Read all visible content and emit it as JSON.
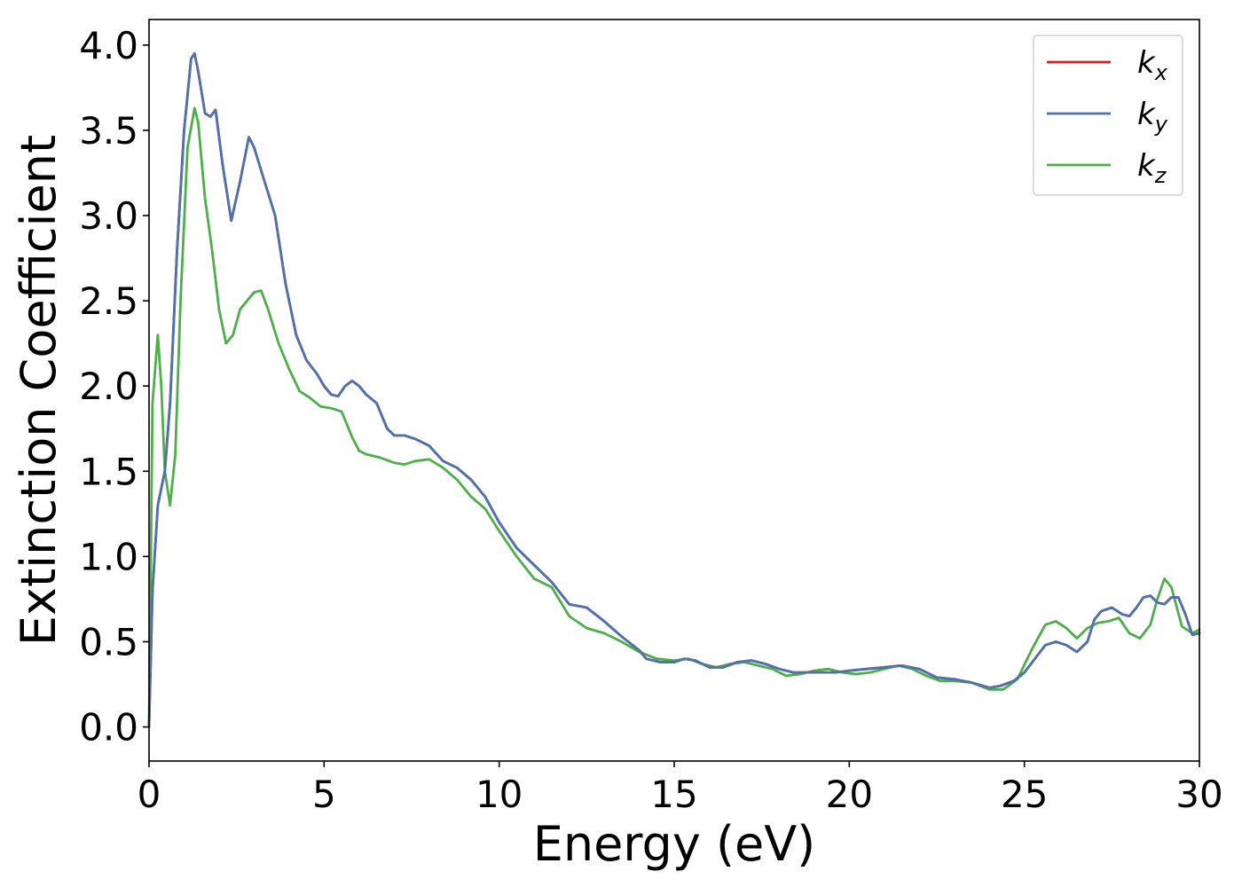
{
  "chart_data": {
    "type": "line",
    "title": "",
    "xlabel": "Energy (eV)",
    "ylabel": "Extinction Coefficient",
    "xlim": [
      0,
      30
    ],
    "ylim": [
      -0.2,
      4.15
    ],
    "xticks": [
      0,
      5,
      10,
      15,
      20,
      25,
      30
    ],
    "xtick_labels": [
      "0",
      "5",
      "10",
      "15",
      "20",
      "25",
      "30"
    ],
    "yticks": [
      0.0,
      0.5,
      1.0,
      1.5,
      2.0,
      2.5,
      3.0,
      3.5,
      4.0
    ],
    "ytick_labels": [
      "0.0",
      "0.5",
      "1.0",
      "1.5",
      "2.0",
      "2.5",
      "3.0",
      "3.5",
      "4.0"
    ],
    "grid": false,
    "legend_position": "top-right",
    "series": [
      {
        "name": "k_x",
        "label_base": "k",
        "label_sub": "x",
        "color": "#e41a1c",
        "x": [
          0,
          0.1,
          0.25,
          0.45,
          0.6,
          0.8,
          1.0,
          1.2,
          1.3,
          1.4,
          1.6,
          1.75,
          1.9,
          2.1,
          2.35,
          2.6,
          2.85,
          3.0,
          3.3,
          3.6,
          3.9,
          4.2,
          4.5,
          4.8,
          5.0,
          5.2,
          5.4,
          5.6,
          5.8,
          6.0,
          6.2,
          6.5,
          6.8,
          7.0,
          7.3,
          7.6,
          8.0,
          8.4,
          8.8,
          9.2,
          9.6,
          10.0,
          10.5,
          11.0,
          11.5,
          12.0,
          12.5,
          13.0,
          13.5,
          14.0,
          14.2,
          14.6,
          15.0,
          15.3,
          15.6,
          16.0,
          16.4,
          16.8,
          17.2,
          17.6,
          18.0,
          18.4,
          18.8,
          19.2,
          19.6,
          20.0,
          20.5,
          21.0,
          21.5,
          22.0,
          22.5,
          23.0,
          23.5,
          24.0,
          24.3,
          24.7,
          25.0,
          25.3,
          25.6,
          25.9,
          26.2,
          26.5,
          26.8,
          27.0,
          27.2,
          27.5,
          27.8,
          28.0,
          28.2,
          28.4,
          28.6,
          28.8,
          29.0,
          29.2,
          29.4,
          29.6,
          29.8,
          30.0
        ],
        "y": [
          0.0,
          0.8,
          1.3,
          1.5,
          1.9,
          2.8,
          3.5,
          3.92,
          3.95,
          3.85,
          3.6,
          3.58,
          3.62,
          3.3,
          2.97,
          3.2,
          3.46,
          3.4,
          3.2,
          3.0,
          2.6,
          2.3,
          2.15,
          2.07,
          2.0,
          1.95,
          1.94,
          2.0,
          2.03,
          2.0,
          1.95,
          1.9,
          1.75,
          1.71,
          1.71,
          1.69,
          1.65,
          1.56,
          1.52,
          1.45,
          1.35,
          1.2,
          1.05,
          0.95,
          0.85,
          0.72,
          0.7,
          0.62,
          0.53,
          0.45,
          0.4,
          0.38,
          0.38,
          0.4,
          0.39,
          0.35,
          0.35,
          0.38,
          0.39,
          0.37,
          0.34,
          0.32,
          0.32,
          0.32,
          0.32,
          0.33,
          0.34,
          0.35,
          0.36,
          0.34,
          0.29,
          0.28,
          0.26,
          0.23,
          0.24,
          0.27,
          0.32,
          0.4,
          0.48,
          0.5,
          0.48,
          0.44,
          0.5,
          0.63,
          0.68,
          0.7,
          0.66,
          0.65,
          0.7,
          0.76,
          0.77,
          0.73,
          0.72,
          0.76,
          0.76,
          0.66,
          0.54,
          0.55
        ]
      },
      {
        "name": "k_y",
        "label_base": "k",
        "label_sub": "y",
        "color": "#4a73b0",
        "x": [
          0,
          0.1,
          0.25,
          0.45,
          0.6,
          0.8,
          1.0,
          1.2,
          1.3,
          1.4,
          1.6,
          1.75,
          1.9,
          2.1,
          2.35,
          2.6,
          2.85,
          3.0,
          3.3,
          3.6,
          3.9,
          4.2,
          4.5,
          4.8,
          5.0,
          5.2,
          5.4,
          5.6,
          5.8,
          6.0,
          6.2,
          6.5,
          6.8,
          7.0,
          7.3,
          7.6,
          8.0,
          8.4,
          8.8,
          9.2,
          9.6,
          10.0,
          10.5,
          11.0,
          11.5,
          12.0,
          12.5,
          13.0,
          13.5,
          14.0,
          14.2,
          14.6,
          15.0,
          15.3,
          15.6,
          16.0,
          16.4,
          16.8,
          17.2,
          17.6,
          18.0,
          18.4,
          18.8,
          19.2,
          19.6,
          20.0,
          20.5,
          21.0,
          21.5,
          22.0,
          22.5,
          23.0,
          23.5,
          24.0,
          24.3,
          24.7,
          25.0,
          25.3,
          25.6,
          25.9,
          26.2,
          26.5,
          26.8,
          27.0,
          27.2,
          27.5,
          27.8,
          28.0,
          28.2,
          28.4,
          28.6,
          28.8,
          29.0,
          29.2,
          29.4,
          29.6,
          29.8,
          30.0
        ],
        "y": [
          0.0,
          0.8,
          1.3,
          1.5,
          1.9,
          2.8,
          3.5,
          3.92,
          3.95,
          3.85,
          3.6,
          3.58,
          3.62,
          3.3,
          2.97,
          3.2,
          3.46,
          3.4,
          3.2,
          3.0,
          2.6,
          2.3,
          2.15,
          2.07,
          2.0,
          1.95,
          1.94,
          2.0,
          2.03,
          2.0,
          1.95,
          1.9,
          1.75,
          1.71,
          1.71,
          1.69,
          1.65,
          1.56,
          1.52,
          1.45,
          1.35,
          1.2,
          1.05,
          0.95,
          0.85,
          0.72,
          0.7,
          0.62,
          0.53,
          0.45,
          0.4,
          0.38,
          0.38,
          0.4,
          0.39,
          0.35,
          0.35,
          0.38,
          0.39,
          0.37,
          0.34,
          0.32,
          0.32,
          0.32,
          0.32,
          0.33,
          0.34,
          0.35,
          0.36,
          0.34,
          0.29,
          0.28,
          0.26,
          0.23,
          0.24,
          0.27,
          0.32,
          0.4,
          0.48,
          0.5,
          0.48,
          0.44,
          0.5,
          0.63,
          0.68,
          0.7,
          0.66,
          0.65,
          0.7,
          0.76,
          0.77,
          0.73,
          0.72,
          0.76,
          0.76,
          0.66,
          0.54,
          0.55
        ]
      },
      {
        "name": "k_z",
        "label_base": "k",
        "label_sub": "z",
        "color": "#4daf4a",
        "x": [
          0,
          0.1,
          0.25,
          0.35,
          0.45,
          0.6,
          0.75,
          0.9,
          1.1,
          1.3,
          1.4,
          1.6,
          1.8,
          2.0,
          2.2,
          2.4,
          2.6,
          2.8,
          3.0,
          3.2,
          3.4,
          3.7,
          4.0,
          4.3,
          4.6,
          4.9,
          5.2,
          5.5,
          5.8,
          6.0,
          6.2,
          6.6,
          7.0,
          7.3,
          7.6,
          8.0,
          8.4,
          8.8,
          9.2,
          9.6,
          10.0,
          10.5,
          11.0,
          11.5,
          12.0,
          12.5,
          13.0,
          13.5,
          14.0,
          14.5,
          15.0,
          15.4,
          15.8,
          16.2,
          16.6,
          17.0,
          17.4,
          17.8,
          18.2,
          18.6,
          19.0,
          19.4,
          19.8,
          20.2,
          20.6,
          21.0,
          21.4,
          21.8,
          22.2,
          22.6,
          23.0,
          23.5,
          24.0,
          24.4,
          24.8,
          25.2,
          25.6,
          25.9,
          26.2,
          26.5,
          26.8,
          27.1,
          27.4,
          27.7,
          28.0,
          28.3,
          28.6,
          28.8,
          29.0,
          29.2,
          29.5,
          29.8,
          30.0
        ],
        "y": [
          0.0,
          1.9,
          2.3,
          2.0,
          1.5,
          1.3,
          1.6,
          2.5,
          3.4,
          3.63,
          3.55,
          3.1,
          2.8,
          2.45,
          2.25,
          2.3,
          2.45,
          2.5,
          2.55,
          2.56,
          2.45,
          2.25,
          2.1,
          1.97,
          1.93,
          1.88,
          1.87,
          1.85,
          1.7,
          1.62,
          1.6,
          1.58,
          1.55,
          1.54,
          1.56,
          1.57,
          1.52,
          1.45,
          1.35,
          1.28,
          1.15,
          1.0,
          0.87,
          0.82,
          0.65,
          0.58,
          0.55,
          0.5,
          0.44,
          0.4,
          0.39,
          0.4,
          0.37,
          0.35,
          0.37,
          0.38,
          0.36,
          0.34,
          0.3,
          0.31,
          0.33,
          0.34,
          0.32,
          0.31,
          0.32,
          0.34,
          0.36,
          0.34,
          0.3,
          0.27,
          0.27,
          0.26,
          0.22,
          0.22,
          0.28,
          0.45,
          0.6,
          0.62,
          0.58,
          0.52,
          0.58,
          0.61,
          0.62,
          0.64,
          0.55,
          0.52,
          0.6,
          0.75,
          0.87,
          0.82,
          0.59,
          0.55,
          0.57
        ]
      }
    ]
  }
}
